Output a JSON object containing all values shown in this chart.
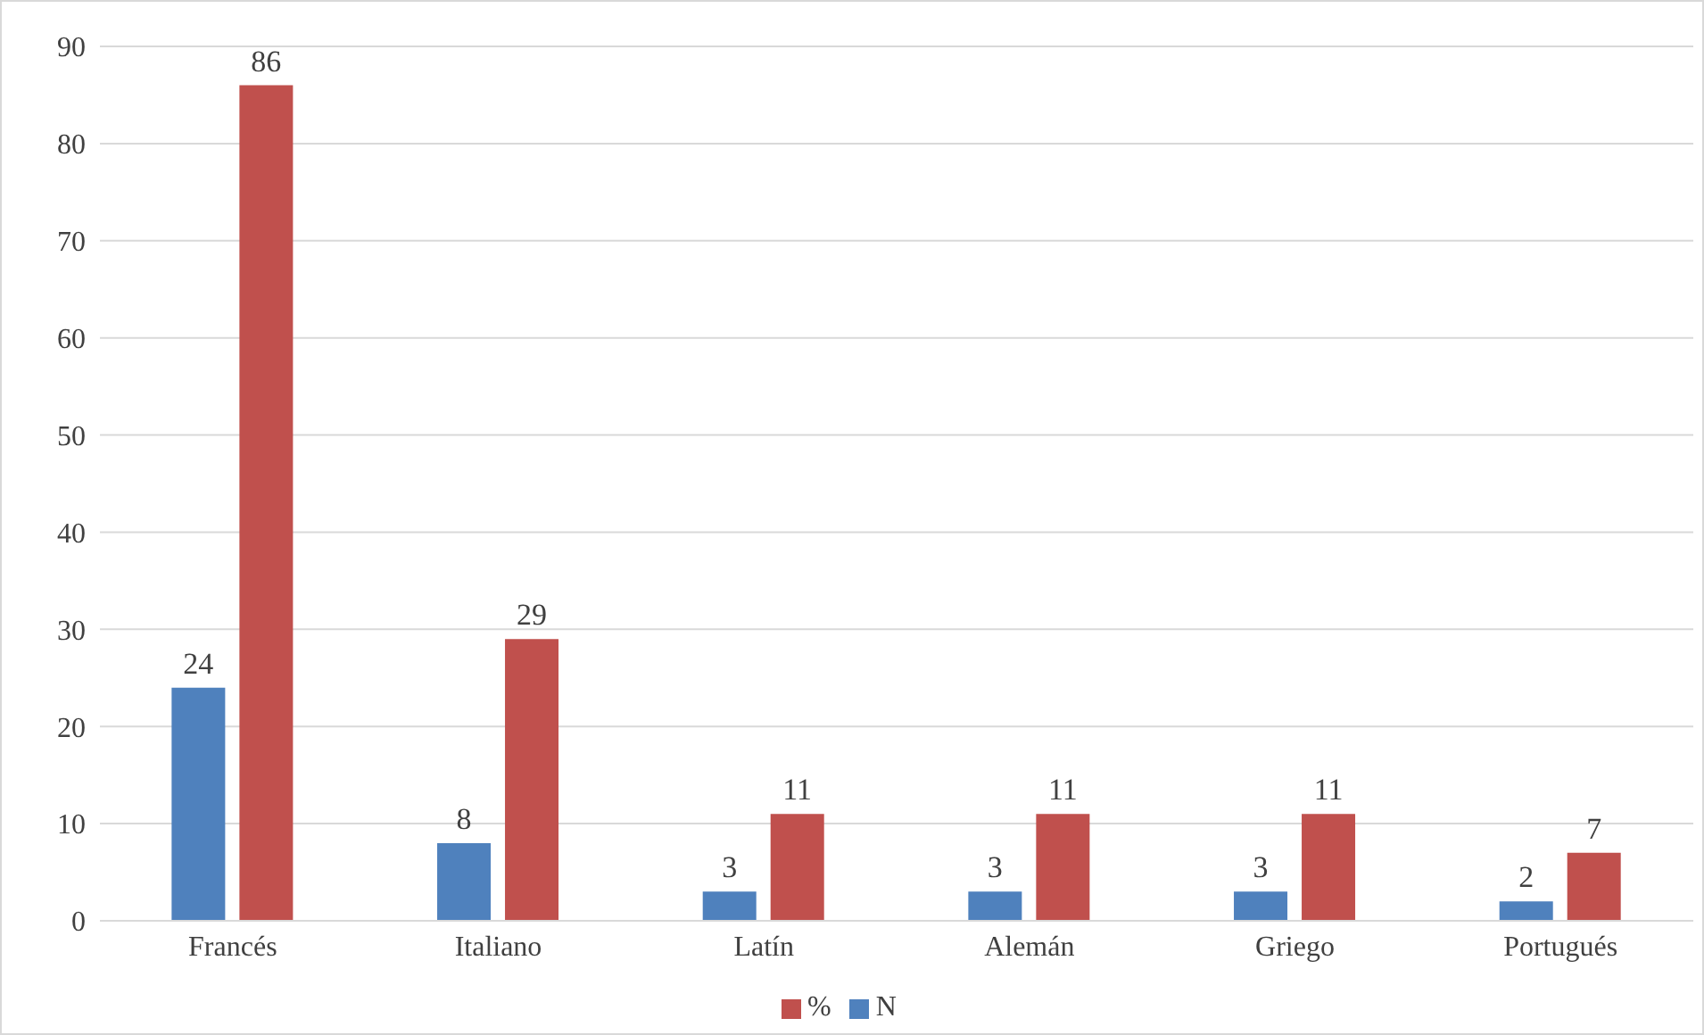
{
  "chart_data": {
    "type": "bar",
    "categories": [
      "Francés",
      "Italiano",
      "Latín",
      "Alemán",
      "Griego",
      "Portugués"
    ],
    "series": [
      {
        "name": "N",
        "color": "#4f81bd",
        "values": [
          24,
          8,
          3,
          3,
          3,
          2
        ]
      },
      {
        "name": "%",
        "color": "#c0504d",
        "values": [
          86,
          29,
          11,
          11,
          11,
          7
        ]
      }
    ],
    "ylim": [
      0,
      90
    ],
    "yticks": [
      0,
      10,
      20,
      30,
      40,
      50,
      60,
      70,
      80,
      90
    ],
    "grid": "y",
    "legend": "bottom",
    "data_labels": true
  }
}
